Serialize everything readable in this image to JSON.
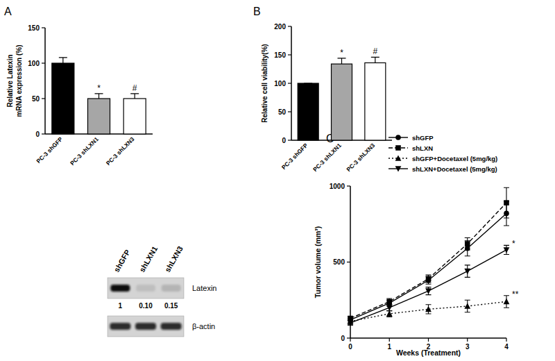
{
  "panel_labels": [
    "A",
    "B",
    "C"
  ],
  "chart_data": [
    {
      "type": "bar",
      "ylabel": "Relative Latexin\nmRNA expression (%)",
      "categories": [
        "PC-3 shGFP",
        "PC-3 shLXN1",
        "PC-3 shLXN3"
      ],
      "values": [
        100,
        50,
        50
      ],
      "errors": [
        8,
        7,
        7
      ],
      "annotations": [
        null,
        "*",
        "#"
      ],
      "colors": [
        "#000000",
        "#a6a6a6",
        "#ffffff"
      ],
      "ylim": [
        0,
        150
      ],
      "yticks": [
        0,
        50,
        100,
        150
      ]
    },
    {
      "type": "bar",
      "ylabel": "Relative cell viability(%)",
      "categories": [
        "PC-3 shGFP",
        "PC-3 shLXN1",
        "PC-3 shLXN3"
      ],
      "values": [
        100,
        134,
        136
      ],
      "errors": [
        0,
        10,
        10
      ],
      "annotations": [
        null,
        "*",
        "#"
      ],
      "colors": [
        "#000000",
        "#a6a6a6",
        "#ffffff"
      ],
      "ylim": [
        0,
        200
      ],
      "yticks": [
        0,
        50,
        100,
        150,
        200
      ]
    },
    {
      "type": "line",
      "xlabel": "Weeks (Treatment)",
      "ylabel": "Tumor volume (mm³)",
      "x": [
        0,
        1,
        2,
        3,
        4
      ],
      "xlim": [
        0,
        4
      ],
      "xticks": [
        0,
        1,
        2,
        3,
        4
      ],
      "ylim": [
        0,
        1000
      ],
      "yticks": [
        0,
        500,
        1000
      ],
      "legend": "top",
      "series": [
        {
          "name": "shGFP",
          "color": "#000000",
          "marker": "circle",
          "line_style": "solid",
          "values": [
            120,
            230,
            380,
            590,
            820
          ],
          "errors": [
            20,
            20,
            25,
            50,
            80
          ]
        },
        {
          "name": "shLXN",
          "color": "#000000",
          "marker": "square",
          "line_style": "dashed",
          "values": [
            130,
            240,
            390,
            620,
            890
          ],
          "errors": [
            10,
            20,
            25,
            40,
            100
          ]
        },
        {
          "name": "shGFP+Docetaxel (5mg/kg)",
          "color": "#000000",
          "marker": "triangle-up",
          "line_style": "dotted",
          "values": [
            110,
            160,
            190,
            210,
            240
          ],
          "errors": [
            20,
            20,
            30,
            40,
            40
          ],
          "annotation": "**"
        },
        {
          "name": "shLXN+Docetaxel (5mg/kg)",
          "color": "#000000",
          "marker": "triangle-down",
          "line_style": "solid",
          "values": [
            100,
            200,
            310,
            440,
            580
          ],
          "errors": [
            15,
            20,
            25,
            40,
            30
          ],
          "annotation": "*"
        }
      ]
    }
  ],
  "blot": {
    "lanes": [
      "shGFP",
      "shLXN1",
      "shLXN3"
    ],
    "rows": [
      {
        "label": "Latexin",
        "quantification": [
          1,
          {
            "value": 0.1,
            "label": "0.10"
          },
          {
            "value": 0.15,
            "label": "0.15"
          }
        ]
      },
      {
        "label": "β-actin"
      }
    ]
  }
}
